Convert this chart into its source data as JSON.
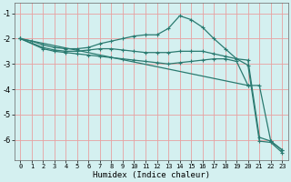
{
  "xlabel": "Humidex (Indice chaleur)",
  "ylabel": "",
  "bg_color": "#d4f0f0",
  "grid_color": "#e8a0a0",
  "line_color": "#2a7a70",
  "xlim": [
    -0.5,
    23.5
  ],
  "ylim": [
    -6.8,
    -0.6
  ],
  "xticks": [
    0,
    1,
    2,
    3,
    4,
    5,
    6,
    7,
    8,
    9,
    10,
    11,
    12,
    13,
    14,
    15,
    16,
    17,
    18,
    19,
    20,
    21,
    22,
    23
  ],
  "yticks": [
    -6,
    -5,
    -4,
    -3,
    -2,
    -1
  ],
  "series": [
    {
      "x": [
        0,
        1,
        2,
        3,
        4,
        5,
        6,
        7,
        8,
        9,
        10,
        11,
        12,
        13,
        14,
        15,
        16,
        17,
        18,
        19,
        20,
        21,
        22,
        23
      ],
      "y": [
        -2.0,
        -2.1,
        -2.25,
        -2.35,
        -2.4,
        -2.4,
        -2.35,
        -2.2,
        -2.1,
        -2.0,
        -1.9,
        -1.85,
        -1.85,
        -1.6,
        -1.1,
        -1.25,
        -1.55,
        -2.0,
        -2.4,
        -2.8,
        -2.85,
        -5.9,
        -6.05,
        -6.4
      ]
    },
    {
      "x": [
        0,
        2,
        3,
        4,
        5,
        6,
        7,
        8,
        9,
        10,
        11,
        12,
        13,
        14,
        15,
        16,
        17,
        18,
        19,
        20,
        21,
        22,
        23
      ],
      "y": [
        -2.0,
        -2.35,
        -2.45,
        -2.5,
        -2.5,
        -2.45,
        -2.4,
        -2.4,
        -2.45,
        -2.5,
        -2.55,
        -2.55,
        -2.55,
        -2.5,
        -2.5,
        -2.5,
        -2.6,
        -2.7,
        -2.8,
        -3.05,
        -6.05,
        -6.1,
        -6.5
      ]
    },
    {
      "x": [
        0,
        2,
        3,
        4,
        5,
        6,
        7,
        8,
        9,
        10,
        11,
        12,
        13,
        14,
        15,
        16,
        17,
        18,
        19,
        20
      ],
      "y": [
        -2.0,
        -2.4,
        -2.5,
        -2.55,
        -2.6,
        -2.65,
        -2.7,
        -2.75,
        -2.8,
        -2.85,
        -2.9,
        -2.95,
        -3.0,
        -2.95,
        -2.9,
        -2.85,
        -2.8,
        -2.8,
        -2.9,
        -3.85
      ]
    },
    {
      "x": [
        0,
        20,
        21,
        22,
        23
      ],
      "y": [
        -2.0,
        -3.85,
        -3.85,
        -6.05,
        -6.4
      ]
    }
  ]
}
